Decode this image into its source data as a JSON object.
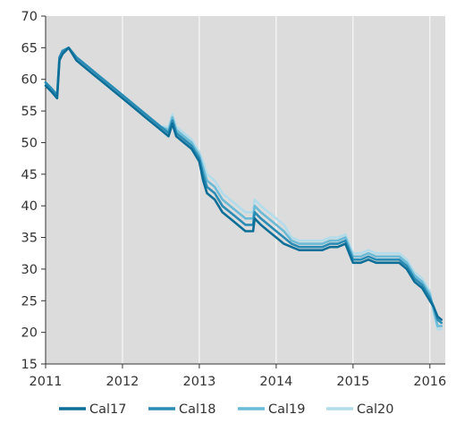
{
  "chart_data": {
    "type": "line",
    "title": "",
    "xlabel": "",
    "ylabel": "",
    "xlim": [
      2011,
      2016.2
    ],
    "ylim": [
      15,
      70
    ],
    "yticks": [
      15,
      20,
      25,
      30,
      35,
      40,
      45,
      50,
      55,
      60,
      65,
      70
    ],
    "xticks": [
      2011,
      2012,
      2013,
      2014,
      2015,
      2016
    ],
    "grid": "vertical",
    "legend_position": "bottom",
    "plot_background": "#dcdcdc",
    "series": [
      {
        "name": "Cal17",
        "color": "#0d6e97",
        "x": [
          2011.0,
          2011.08,
          2011.15,
          2011.18,
          2011.22,
          2011.3,
          2011.4,
          2011.5,
          2011.6,
          2011.7,
          2011.8,
          2011.9,
          2012.0,
          2012.1,
          2012.2,
          2012.3,
          2012.4,
          2012.5,
          2012.6,
          2012.65,
          2012.7,
          2012.8,
          2012.9,
          2012.95,
          2013.0,
          2013.05,
          2013.1,
          2013.2,
          2013.3,
          2013.4,
          2013.5,
          2013.6,
          2013.7,
          2013.72,
          2013.8,
          2013.9,
          2014.0,
          2014.1,
          2014.2,
          2014.3,
          2014.4,
          2014.5,
          2014.6,
          2014.7,
          2014.8,
          2014.9,
          2015.0,
          2015.1,
          2015.2,
          2015.3,
          2015.4,
          2015.5,
          2015.6,
          2015.7,
          2015.8,
          2015.9,
          2016.0,
          2016.05,
          2016.1,
          2016.15
        ],
        "y": [
          59,
          58,
          57,
          63,
          64,
          65,
          63,
          62,
          61,
          60,
          59,
          58,
          57,
          56,
          55,
          54,
          53,
          52,
          51,
          53,
          51,
          50,
          49,
          48,
          47,
          44,
          42,
          41,
          39,
          38,
          37,
          36,
          36,
          38,
          37,
          36,
          35,
          34,
          33.5,
          33,
          33,
          33,
          33,
          33.5,
          33.5,
          34,
          31,
          31,
          31.5,
          31,
          31,
          31,
          31,
          30,
          28,
          27,
          25,
          24,
          22.5,
          22
        ]
      },
      {
        "name": "Cal18",
        "color": "#2a8bb5",
        "x": [
          2011.0,
          2011.08,
          2011.15,
          2011.18,
          2011.22,
          2011.3,
          2011.4,
          2011.5,
          2011.6,
          2011.7,
          2011.8,
          2011.9,
          2012.0,
          2012.1,
          2012.2,
          2012.3,
          2012.4,
          2012.5,
          2012.6,
          2012.65,
          2012.7,
          2012.8,
          2012.9,
          2012.95,
          2013.0,
          2013.05,
          2013.1,
          2013.2,
          2013.3,
          2013.4,
          2013.5,
          2013.6,
          2013.7,
          2013.72,
          2013.8,
          2013.9,
          2014.0,
          2014.1,
          2014.2,
          2014.3,
          2014.4,
          2014.5,
          2014.6,
          2014.7,
          2014.8,
          2014.9,
          2015.0,
          2015.1,
          2015.2,
          2015.3,
          2015.4,
          2015.5,
          2015.6,
          2015.7,
          2015.8,
          2015.9,
          2016.0,
          2016.05,
          2016.1,
          2016.15
        ],
        "y": [
          59.5,
          58.5,
          57.5,
          63.5,
          64.5,
          65,
          63.5,
          62.5,
          61.5,
          60.5,
          59.5,
          58.5,
          57.5,
          56.5,
          55.5,
          54.5,
          53.5,
          52.5,
          51.5,
          53.5,
          51.5,
          50.5,
          49.5,
          48.5,
          47.5,
          45,
          43,
          42,
          40,
          39,
          38,
          37,
          37,
          39,
          38,
          37,
          36,
          35,
          34,
          33.5,
          33.5,
          33.5,
          33.5,
          34,
          34,
          34.5,
          31.5,
          31.5,
          32,
          31.5,
          31.5,
          31.5,
          31.5,
          30.5,
          28.5,
          27.5,
          25.5,
          24,
          22,
          21.5
        ]
      },
      {
        "name": "Cal19",
        "color": "#6bbad6",
        "x": [
          2011.0,
          2011.08,
          2011.15,
          2011.18,
          2011.22,
          2011.3,
          2011.4,
          2011.5,
          2011.6,
          2011.7,
          2011.8,
          2011.9,
          2012.0,
          2012.1,
          2012.2,
          2012.3,
          2012.4,
          2012.5,
          2012.6,
          2012.65,
          2012.7,
          2012.8,
          2012.9,
          2012.95,
          2013.0,
          2013.05,
          2013.1,
          2013.2,
          2013.3,
          2013.4,
          2013.5,
          2013.6,
          2013.7,
          2013.72,
          2013.8,
          2013.9,
          2014.0,
          2014.1,
          2014.2,
          2014.3,
          2014.4,
          2014.5,
          2014.6,
          2014.7,
          2014.8,
          2014.9,
          2015.0,
          2015.1,
          2015.2,
          2015.3,
          2015.4,
          2015.5,
          2015.6,
          2015.7,
          2015.8,
          2015.9,
          2016.0,
          2016.05,
          2016.1,
          2016.15
        ],
        "y": [
          59.5,
          58.5,
          57.5,
          63.5,
          64.5,
          65,
          63.5,
          62.5,
          61.5,
          60.5,
          59.5,
          58.5,
          57.5,
          56.5,
          55.5,
          54.5,
          53.5,
          52.5,
          52,
          54,
          52,
          51,
          50,
          49,
          48,
          46,
          44,
          43,
          41,
          40,
          39,
          38,
          38,
          40,
          39,
          38,
          37,
          36,
          34.5,
          34,
          34,
          34,
          34,
          34.5,
          34.5,
          35,
          32,
          32,
          32.5,
          32,
          32,
          32,
          32,
          31,
          29,
          28,
          26,
          23.5,
          21,
          21
        ]
      },
      {
        "name": "Cal20",
        "color": "#b3dcea",
        "x": [
          2011.0,
          2011.08,
          2011.15,
          2011.18,
          2011.22,
          2011.3,
          2011.4,
          2011.5,
          2011.6,
          2011.7,
          2011.8,
          2011.9,
          2012.0,
          2012.1,
          2012.2,
          2012.3,
          2012.4,
          2012.5,
          2012.6,
          2012.65,
          2012.7,
          2012.8,
          2012.9,
          2012.95,
          2013.0,
          2013.05,
          2013.1,
          2013.2,
          2013.3,
          2013.4,
          2013.5,
          2013.6,
          2013.7,
          2013.72,
          2013.8,
          2013.9,
          2014.0,
          2014.1,
          2014.2,
          2014.3,
          2014.4,
          2014.5,
          2014.6,
          2014.7,
          2014.8,
          2014.9,
          2015.0,
          2015.1,
          2015.2,
          2015.3,
          2015.4,
          2015.5,
          2015.6,
          2015.7,
          2015.8,
          2015.9,
          2016.0,
          2016.05,
          2016.1,
          2016.15
        ],
        "y": [
          59.5,
          58.5,
          57.5,
          63.5,
          64.5,
          65,
          63.5,
          62.5,
          61.5,
          60.5,
          59.5,
          58.5,
          57.5,
          56.5,
          55.5,
          54.5,
          53.5,
          52.5,
          52.5,
          54.5,
          52.5,
          51.5,
          50.5,
          49.5,
          48.5,
          47,
          45,
          44,
          42,
          41,
          40,
          39,
          39,
          41,
          40,
          39,
          38,
          37,
          35,
          34.5,
          34.5,
          34.5,
          34.5,
          35,
          35,
          35.5,
          32.5,
          32.5,
          33,
          32.5,
          32.5,
          32.5,
          32.5,
          31.5,
          29.5,
          28.5,
          26.5,
          23,
          20.5,
          20.5
        ]
      }
    ]
  }
}
